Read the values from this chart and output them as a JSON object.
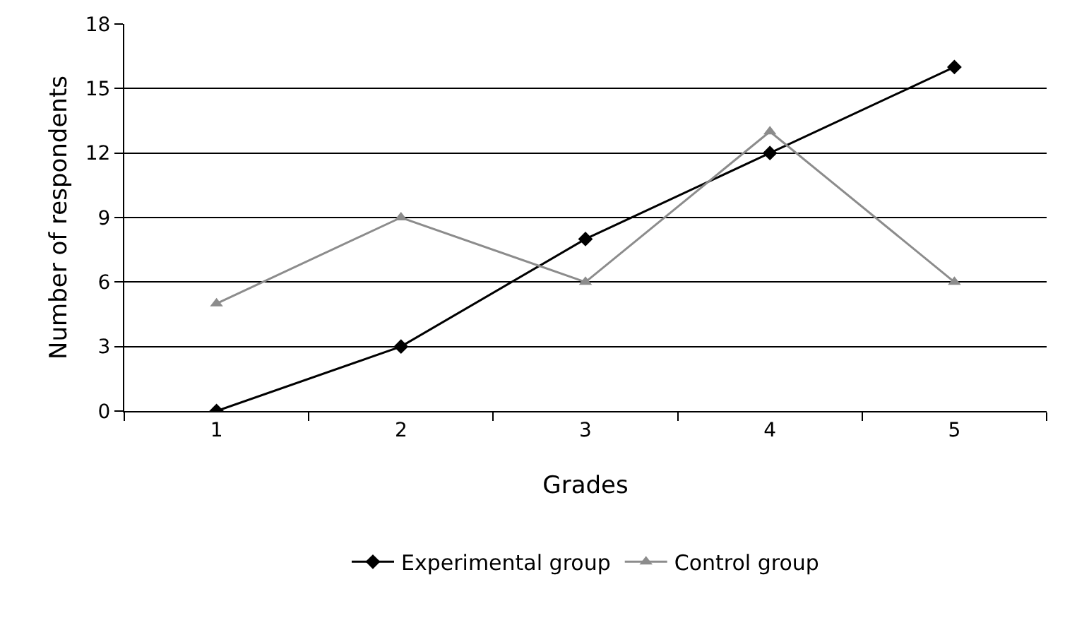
{
  "chart_data": {
    "type": "line",
    "xlabel": "Grades",
    "ylabel": "Number of respondents",
    "categories": [
      "1",
      "2",
      "3",
      "4",
      "5"
    ],
    "series": [
      {
        "name": "Experimental group",
        "color": "#000000",
        "marker": "diamond",
        "values": [
          0,
          3,
          8,
          12,
          16
        ]
      },
      {
        "name": "Control group",
        "color": "#8c8c8c",
        "marker": "triangle",
        "values": [
          5,
          9,
          6,
          13,
          6
        ]
      }
    ],
    "ylim": [
      0,
      18
    ],
    "yticks": [
      0,
      3,
      6,
      9,
      12,
      15,
      18
    ],
    "grid": "y",
    "legend": "bottom",
    "line_style": "solid"
  }
}
